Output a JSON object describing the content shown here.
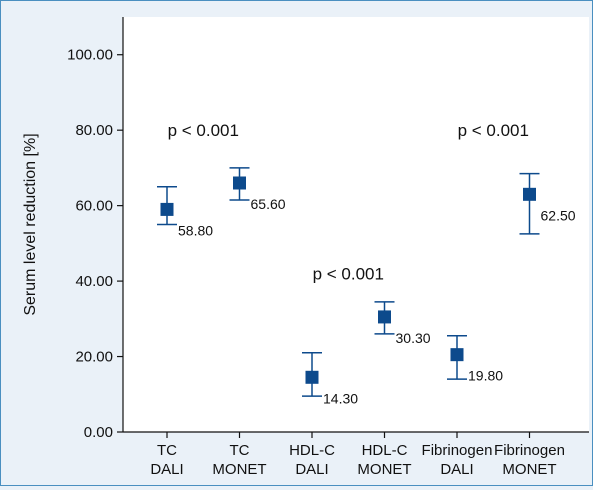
{
  "chart_data": {
    "type": "scatter",
    "subtype": "point-with-error-bars",
    "ylabel": "Serum level reduction [%]",
    "ylim": [
      0,
      110
    ],
    "yticks": [
      "0.00",
      "20.00",
      "40.00",
      "60.00",
      "80.00",
      "100.00"
    ],
    "ytick_values": [
      0,
      20,
      40,
      60,
      80,
      100
    ],
    "grid": false,
    "categories": [
      [
        "TC",
        "DALI"
      ],
      [
        "TC",
        "MONET"
      ],
      [
        "HDL-C",
        "DALI"
      ],
      [
        "HDL-C",
        "MONET"
      ],
      [
        "Fibrinogen",
        "DALI"
      ],
      [
        "Fibrinogen",
        "MONET"
      ]
    ],
    "points": [
      {
        "value": 59,
        "lower": 55,
        "upper": 65,
        "label": "58.80"
      },
      {
        "value": 66,
        "lower": 61.5,
        "upper": 70,
        "label": "65.60"
      },
      {
        "value": 14.5,
        "lower": 9.5,
        "upper": 21,
        "label": "14.30"
      },
      {
        "value": 30.5,
        "lower": 26,
        "upper": 34.5,
        "label": "30.30"
      },
      {
        "value": 20.5,
        "lower": 14,
        "upper": 25.5,
        "label": "19.80"
      },
      {
        "value": 63,
        "lower": 52.5,
        "upper": 68.5,
        "label": "62.50"
      }
    ],
    "annotations": [
      {
        "text": "p < 0.001",
        "x_center": 0.5,
        "y": 80
      },
      {
        "text": "p < 0.001",
        "x_center": 2.5,
        "y": 42
      },
      {
        "text": "p < 0.001",
        "x_center": 4.5,
        "y": 80
      }
    ],
    "colors": {
      "marker": "#0d4a8c",
      "axis": "#111111",
      "background": "#eaf1f8",
      "frame": "#4a8fc0"
    }
  }
}
